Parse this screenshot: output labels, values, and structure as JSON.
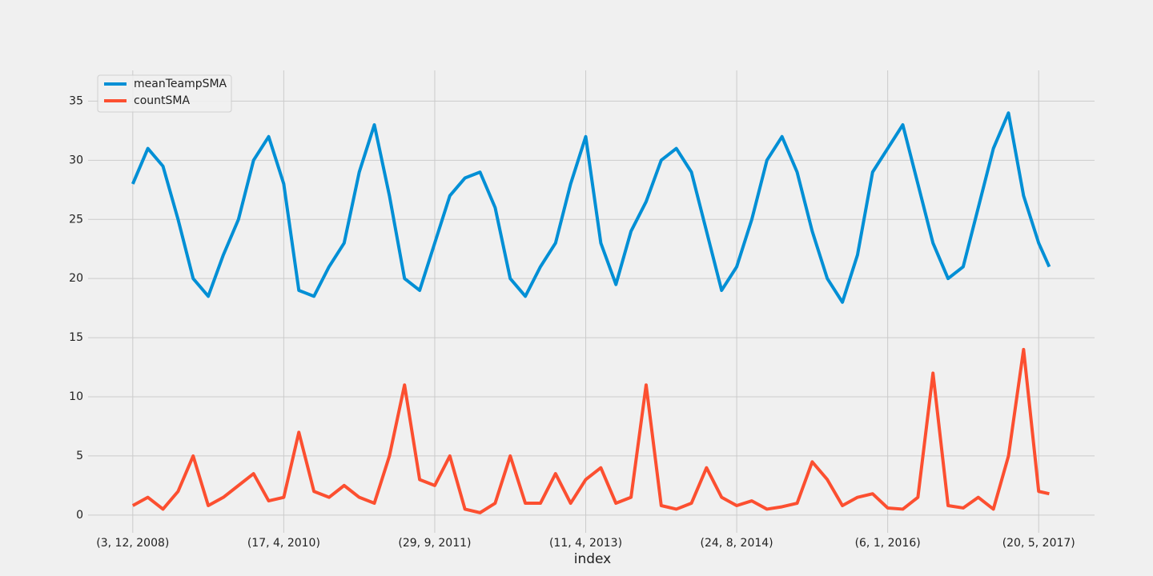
{
  "chart_data": {
    "type": "line",
    "x_label": "index",
    "x": [
      0,
      50,
      100,
      150,
      200,
      250,
      300,
      350,
      400,
      450,
      500,
      550,
      600,
      650,
      700,
      750,
      800,
      850,
      900,
      950,
      1000,
      1050,
      1100,
      1150,
      1200,
      1250,
      1300,
      1350,
      1400,
      1450,
      1500,
      1550,
      1600,
      1650,
      1700,
      1750,
      1800,
      1850,
      1900,
      1950,
      2000,
      2050,
      2100,
      2150,
      2200,
      2250,
      2300,
      2350,
      2400,
      2450,
      2500,
      2550,
      2600,
      2650,
      2700,
      2750,
      2800,
      2850,
      2900,
      2950,
      3000,
      3035
    ],
    "series": [
      {
        "name": "meanTeampSMA",
        "color": "#008fd5",
        "values": [
          28,
          31,
          29.5,
          25,
          20,
          18.5,
          22,
          25,
          30,
          32,
          28,
          19,
          18.5,
          21,
          23,
          29,
          33,
          27,
          20,
          19,
          23,
          27,
          28.5,
          29,
          26,
          20,
          18.5,
          21,
          23,
          28,
          32,
          23,
          19.5,
          24,
          26.5,
          30,
          31,
          29,
          24,
          19,
          21,
          25,
          30,
          32,
          29,
          24,
          20,
          18,
          22,
          29,
          31,
          33,
          28,
          23,
          20,
          21,
          26,
          31,
          34,
          27,
          23,
          21
        ]
      },
      {
        "name": "countSMA",
        "color": "#fc4f30",
        "values": [
          0.8,
          1.5,
          0.5,
          2,
          5,
          0.8,
          1.5,
          2.5,
          3.5,
          1.2,
          1.5,
          7,
          2,
          1.5,
          2.5,
          1.5,
          1,
          5,
          11,
          3,
          2.5,
          5,
          0.5,
          0.2,
          1,
          5,
          1,
          1,
          3.5,
          1,
          3,
          4,
          1,
          1.5,
          11,
          0.8,
          0.5,
          1,
          4,
          1.5,
          0.8,
          1.2,
          0.5,
          0.7,
          1,
          4.5,
          3,
          0.8,
          1.5,
          1.8,
          0.6,
          0.5,
          1.5,
          12,
          0.8,
          0.6,
          1.5,
          0.5,
          5,
          14,
          2,
          1.8
        ]
      }
    ],
    "xlim": [
      -148,
      3185
    ],
    "xticks": [
      {
        "value": 0,
        "label": "(3, 12, 2008)"
      },
      {
        "value": 500,
        "label": "(17, 4, 2010)"
      },
      {
        "value": 1000,
        "label": "(29, 9, 2011)"
      },
      {
        "value": 1500,
        "label": "(11, 4, 2013)"
      },
      {
        "value": 2000,
        "label": "(24, 8, 2014)"
      },
      {
        "value": 2500,
        "label": "(6, 1, 2016)"
      },
      {
        "value": 3000,
        "label": "(20, 5, 2017)"
      }
    ],
    "ylim": [
      -1.5,
      37.6
    ],
    "yticks": [
      0,
      5,
      10,
      15,
      20,
      25,
      30,
      35
    ],
    "grid": true,
    "legend": "upper left"
  }
}
